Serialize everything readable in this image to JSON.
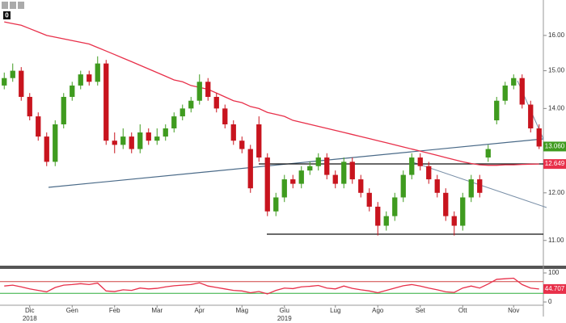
{
  "toolbar": {
    "counter": "0"
  },
  "chart_data": [
    {
      "type": "candlestick",
      "log_scale": true,
      "ylim": [
        10.52,
        17.07
      ],
      "yticks": [
        {
          "value": 11,
          "label": "11.00"
        },
        {
          "value": 12,
          "label": "12.00"
        },
        {
          "value": 13,
          "label": "13.00"
        },
        {
          "value": 14,
          "label": "14.00"
        },
        {
          "value": 15,
          "label": "15.00"
        },
        {
          "value": 16,
          "label": "16.00"
        }
      ],
      "categories": [
        null,
        null,
        null,
        "Dic",
        null,
        null,
        null,
        null,
        "Gen",
        null,
        null,
        null,
        null,
        "Feb",
        null,
        null,
        null,
        null,
        "Mar",
        null,
        null,
        null,
        null,
        "Apr",
        null,
        null,
        null,
        null,
        "Mag",
        null,
        null,
        null,
        null,
        "Giu",
        null,
        null,
        null,
        null,
        null,
        "Lug",
        null,
        null,
        null,
        null,
        "Ago",
        null,
        null,
        null,
        null,
        "Set",
        null,
        null,
        null,
        null,
        "Ott",
        null,
        null,
        null,
        null,
        null,
        "Nov",
        null,
        null,
        null
      ],
      "years": [
        null,
        null,
        null,
        "2018",
        null,
        null,
        null,
        null,
        null,
        null,
        null,
        null,
        null,
        null,
        null,
        null,
        null,
        null,
        null,
        null,
        null,
        null,
        null,
        null,
        null,
        null,
        null,
        null,
        null,
        null,
        null,
        null,
        null,
        "2019",
        null,
        null,
        null,
        null,
        null,
        null,
        null,
        null,
        null,
        null,
        null,
        null,
        null,
        null,
        null,
        null,
        null,
        null,
        null,
        null,
        null,
        null,
        null,
        null,
        null,
        null,
        null,
        null,
        null,
        null
      ],
      "open": [
        14.6,
        14.8,
        15.0,
        14.3,
        13.8,
        13.3,
        12.7,
        13.6,
        14.3,
        14.6,
        14.9,
        14.7,
        15.2,
        13.2,
        13.1,
        13.3,
        13.0,
        13.4,
        13.2,
        13.3,
        13.5,
        13.8,
        14.0,
        14.2,
        14.7,
        14.3,
        14.0,
        13.6,
        13.2,
        13.0,
        13.6,
        12.8,
        11.6,
        11.9,
        12.3,
        12.2,
        12.5,
        12.6,
        12.8,
        12.4,
        12.2,
        12.7,
        12.3,
        12.0,
        11.7,
        11.3,
        11.5,
        11.9,
        12.4,
        12.8,
        12.6,
        12.3,
        12.0,
        11.5,
        11.3,
        11.9,
        12.3,
        12.8,
        13.7,
        14.2,
        14.6,
        14.8,
        14.1,
        13.5
      ],
      "high": [
        14.95,
        15.2,
        15.1,
        14.4,
        13.9,
        13.4,
        13.7,
        14.4,
        14.7,
        15.0,
        15.0,
        15.4,
        15.3,
        13.4,
        13.5,
        13.4,
        13.6,
        13.5,
        13.5,
        13.6,
        13.9,
        14.1,
        14.3,
        14.9,
        14.8,
        14.4,
        14.1,
        13.7,
        13.3,
        13.1,
        13.8,
        12.9,
        12.0,
        12.4,
        12.4,
        12.6,
        12.7,
        12.9,
        12.9,
        12.5,
        12.8,
        12.8,
        12.4,
        12.1,
        11.8,
        11.6,
        12.0,
        12.5,
        12.9,
        12.9,
        12.7,
        12.4,
        12.1,
        11.6,
        12.0,
        12.4,
        12.4,
        13.1,
        14.3,
        14.7,
        14.9,
        14.9,
        14.2,
        13.6
      ],
      "low": [
        14.5,
        14.7,
        14.2,
        13.7,
        13.2,
        12.6,
        12.6,
        13.5,
        14.2,
        14.5,
        14.6,
        14.6,
        13.1,
        12.9,
        13.0,
        12.9,
        12.9,
        13.1,
        13.1,
        13.2,
        13.4,
        13.7,
        13.9,
        14.1,
        14.2,
        13.9,
        13.5,
        13.1,
        12.9,
        12.0,
        12.7,
        11.5,
        11.5,
        11.8,
        12.1,
        12.1,
        12.4,
        12.5,
        12.3,
        12.1,
        12.1,
        12.2,
        11.9,
        11.6,
        11.1,
        11.2,
        11.4,
        11.8,
        12.3,
        12.5,
        12.2,
        11.9,
        11.4,
        11.1,
        11.2,
        11.8,
        11.9,
        12.7,
        13.6,
        14.1,
        14.5,
        14.0,
        13.4,
        13.0
      ],
      "close": [
        14.8,
        15.0,
        14.3,
        13.8,
        13.3,
        12.7,
        13.6,
        14.3,
        14.6,
        14.9,
        14.7,
        15.2,
        13.2,
        13.1,
        13.3,
        13.0,
        13.4,
        13.2,
        13.3,
        13.5,
        13.8,
        14.0,
        14.2,
        14.7,
        14.3,
        14.0,
        13.6,
        13.2,
        13.0,
        12.1,
        12.8,
        11.6,
        11.9,
        12.3,
        12.2,
        12.5,
        12.6,
        12.8,
        12.4,
        12.2,
        12.7,
        12.3,
        12.0,
        11.7,
        11.3,
        11.5,
        11.9,
        12.4,
        12.8,
        12.6,
        12.3,
        12.0,
        11.5,
        11.3,
        11.9,
        12.3,
        12.0,
        13.0,
        14.2,
        14.6,
        14.8,
        14.1,
        13.5,
        13.06
      ],
      "up_color": "#3f9b1f",
      "down_color": "#c8141e",
      "last_label": "13.060",
      "overlay": {
        "type": "line",
        "color": "#e8304a",
        "last_label": "12.649",
        "values": [
          16.4,
          16.35,
          16.3,
          16.2,
          16.1,
          16.0,
          15.95,
          15.9,
          15.85,
          15.8,
          15.75,
          15.65,
          15.55,
          15.45,
          15.35,
          15.25,
          15.15,
          15.05,
          14.95,
          14.85,
          14.75,
          14.7,
          14.6,
          14.55,
          14.5,
          14.4,
          14.3,
          14.2,
          14.15,
          14.05,
          14.0,
          13.9,
          13.85,
          13.8,
          13.7,
          13.65,
          13.6,
          13.55,
          13.5,
          13.45,
          13.4,
          13.35,
          13.3,
          13.25,
          13.2,
          13.15,
          13.1,
          13.05,
          13.0,
          12.95,
          12.9,
          12.85,
          12.8,
          12.75,
          12.7,
          12.66,
          12.63,
          12.62,
          12.62,
          12.63,
          12.63,
          12.64,
          12.645,
          12.649
        ]
      }
    },
    {
      "type": "line",
      "color": "#e8304a",
      "ylim": [
        0,
        100
      ],
      "yticks": [
        0,
        100
      ],
      "last_label": "44.707",
      "levels": [
        {
          "value": 70,
          "color": "#d04040"
        },
        {
          "value": 30,
          "color": "#2fae3c"
        }
      ],
      "values": [
        55,
        58,
        52,
        45,
        40,
        35,
        50,
        58,
        60,
        63,
        60,
        65,
        38,
        36,
        42,
        40,
        48,
        45,
        47,
        52,
        56,
        58,
        60,
        66,
        55,
        50,
        45,
        40,
        38,
        32,
        36,
        28,
        40,
        48,
        46,
        52,
        54,
        57,
        48,
        45,
        55,
        47,
        42,
        38,
        32,
        40,
        48,
        56,
        60,
        55,
        48,
        42,
        35,
        33,
        48,
        55,
        48,
        62,
        78,
        80,
        82,
        60,
        48,
        44.707
      ]
    }
  ]
}
